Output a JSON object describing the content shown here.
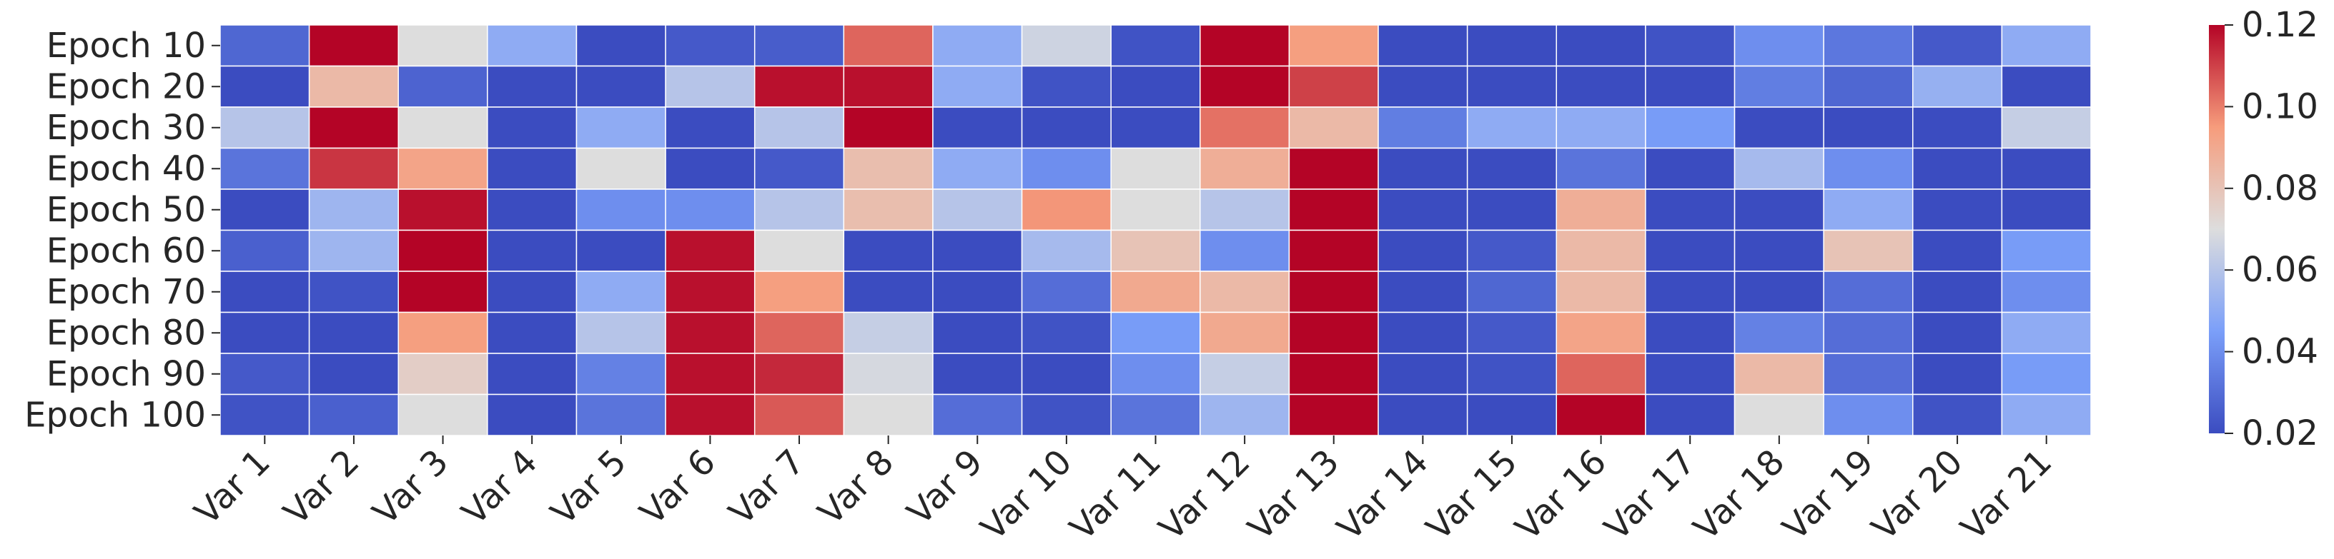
{
  "chart_data": {
    "type": "heatmap",
    "title": "",
    "xlabel": "",
    "ylabel": "",
    "colormap": "coolwarm",
    "vmin": 0.02,
    "vmax": 0.12,
    "x_labels": [
      "Var 1",
      "Var 2",
      "Var 3",
      "Var 4",
      "Var 5",
      "Var 6",
      "Var 7",
      "Var 8",
      "Var 9",
      "Var 10",
      "Var 11",
      "Var 12",
      "Var 13",
      "Var 14",
      "Var 15",
      "Var 16",
      "Var 17",
      "Var 18",
      "Var 19",
      "Var 20",
      "Var 21"
    ],
    "y_labels": [
      "Epoch 10",
      "Epoch 20",
      "Epoch 30",
      "Epoch 40",
      "Epoch 50",
      "Epoch 60",
      "Epoch 70",
      "Epoch 80",
      "Epoch 90",
      "Epoch 100"
    ],
    "colorbar": {
      "ticks": [
        0.02,
        0.04,
        0.06,
        0.08,
        0.1,
        0.12
      ],
      "tick_labels": [
        "0.02",
        "0.04",
        "0.06",
        "0.08",
        "0.10",
        "0.12"
      ]
    },
    "values": [
      [
        0.028,
        0.12,
        0.07,
        0.05,
        0.02,
        0.024,
        0.025,
        0.104,
        0.05,
        0.066,
        0.022,
        0.12,
        0.094,
        0.02,
        0.02,
        0.02,
        0.022,
        0.04,
        0.033,
        0.024,
        0.05
      ],
      [
        0.02,
        0.084,
        0.027,
        0.02,
        0.02,
        0.06,
        0.118,
        0.118,
        0.05,
        0.022,
        0.02,
        0.12,
        0.11,
        0.02,
        0.02,
        0.02,
        0.02,
        0.035,
        0.028,
        0.052,
        0.02
      ],
      [
        0.06,
        0.12,
        0.07,
        0.02,
        0.05,
        0.02,
        0.06,
        0.12,
        0.02,
        0.02,
        0.02,
        0.102,
        0.084,
        0.035,
        0.05,
        0.05,
        0.044,
        0.02,
        0.02,
        0.02,
        0.064
      ],
      [
        0.032,
        0.112,
        0.092,
        0.02,
        0.07,
        0.02,
        0.024,
        0.082,
        0.05,
        0.04,
        0.07,
        0.088,
        0.12,
        0.02,
        0.02,
        0.032,
        0.02,
        0.056,
        0.04,
        0.02,
        0.02
      ],
      [
        0.02,
        0.054,
        0.118,
        0.02,
        0.04,
        0.04,
        0.06,
        0.082,
        0.06,
        0.096,
        0.07,
        0.06,
        0.12,
        0.02,
        0.02,
        0.088,
        0.02,
        0.02,
        0.05,
        0.02,
        0.02
      ],
      [
        0.026,
        0.054,
        0.12,
        0.02,
        0.02,
        0.118,
        0.07,
        0.02,
        0.02,
        0.056,
        0.08,
        0.04,
        0.12,
        0.02,
        0.024,
        0.084,
        0.02,
        0.02,
        0.08,
        0.02,
        0.044
      ],
      [
        0.02,
        0.022,
        0.12,
        0.02,
        0.05,
        0.118,
        0.094,
        0.02,
        0.02,
        0.03,
        0.09,
        0.084,
        0.12,
        0.02,
        0.028,
        0.084,
        0.02,
        0.02,
        0.03,
        0.02,
        0.04
      ],
      [
        0.02,
        0.02,
        0.094,
        0.02,
        0.06,
        0.118,
        0.104,
        0.064,
        0.02,
        0.022,
        0.044,
        0.09,
        0.12,
        0.02,
        0.024,
        0.092,
        0.02,
        0.036,
        0.03,
        0.02,
        0.05
      ],
      [
        0.024,
        0.02,
        0.076,
        0.02,
        0.036,
        0.118,
        0.114,
        0.068,
        0.02,
        0.02,
        0.04,
        0.064,
        0.12,
        0.02,
        0.022,
        0.104,
        0.02,
        0.084,
        0.03,
        0.02,
        0.044
      ],
      [
        0.022,
        0.026,
        0.07,
        0.02,
        0.032,
        0.118,
        0.106,
        0.07,
        0.03,
        0.022,
        0.032,
        0.054,
        0.12,
        0.02,
        0.02,
        0.12,
        0.02,
        0.07,
        0.04,
        0.022,
        0.05
      ]
    ]
  }
}
